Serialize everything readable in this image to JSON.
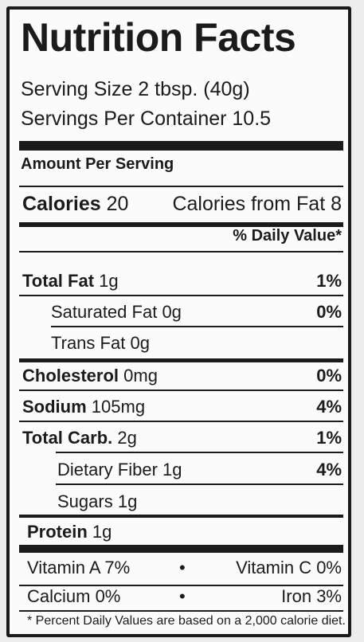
{
  "title": "Nutrition Facts",
  "serving_size": "Serving Size 2 tbsp. (40g)",
  "servings_per_container": "Servings Per Container 10.5",
  "amount_per_serving": "Amount Per Serving",
  "calories": {
    "label": "Calories",
    "value": "20"
  },
  "calories_from_fat": "Calories from Fat  8",
  "daily_value_header": "% Daily Value*",
  "nutrients": [
    {
      "name": "Total Fat",
      "amount": "1g",
      "dv": "1%"
    },
    {
      "name": "Saturated Fat",
      "amount": "0g",
      "dv": "0%"
    },
    {
      "name": "Trans Fat",
      "amount": "0g",
      "dv": ""
    },
    {
      "name": "Cholesterol",
      "amount": "0mg",
      "dv": "0%"
    },
    {
      "name": "Sodium",
      "amount": "105mg",
      "dv": "4%"
    },
    {
      "name": "Total Carb.",
      "amount": "2g",
      "dv": "1%"
    },
    {
      "name": "Dietary Fiber",
      "amount": "1g",
      "dv": "4%"
    },
    {
      "name": "Sugars",
      "amount": "1g",
      "dv": ""
    },
    {
      "name": "Protein",
      "amount": "1g",
      "dv": ""
    }
  ],
  "vitamins": {
    "vitamin_a": "Vitamin A 7%",
    "vitamin_c": "Vitamin C 0%",
    "calcium": "Calcium 0%",
    "iron": "Iron 3%",
    "separator": "•"
  },
  "footnote": "* Percent Daily Values are based on a 2,000 calorie diet."
}
